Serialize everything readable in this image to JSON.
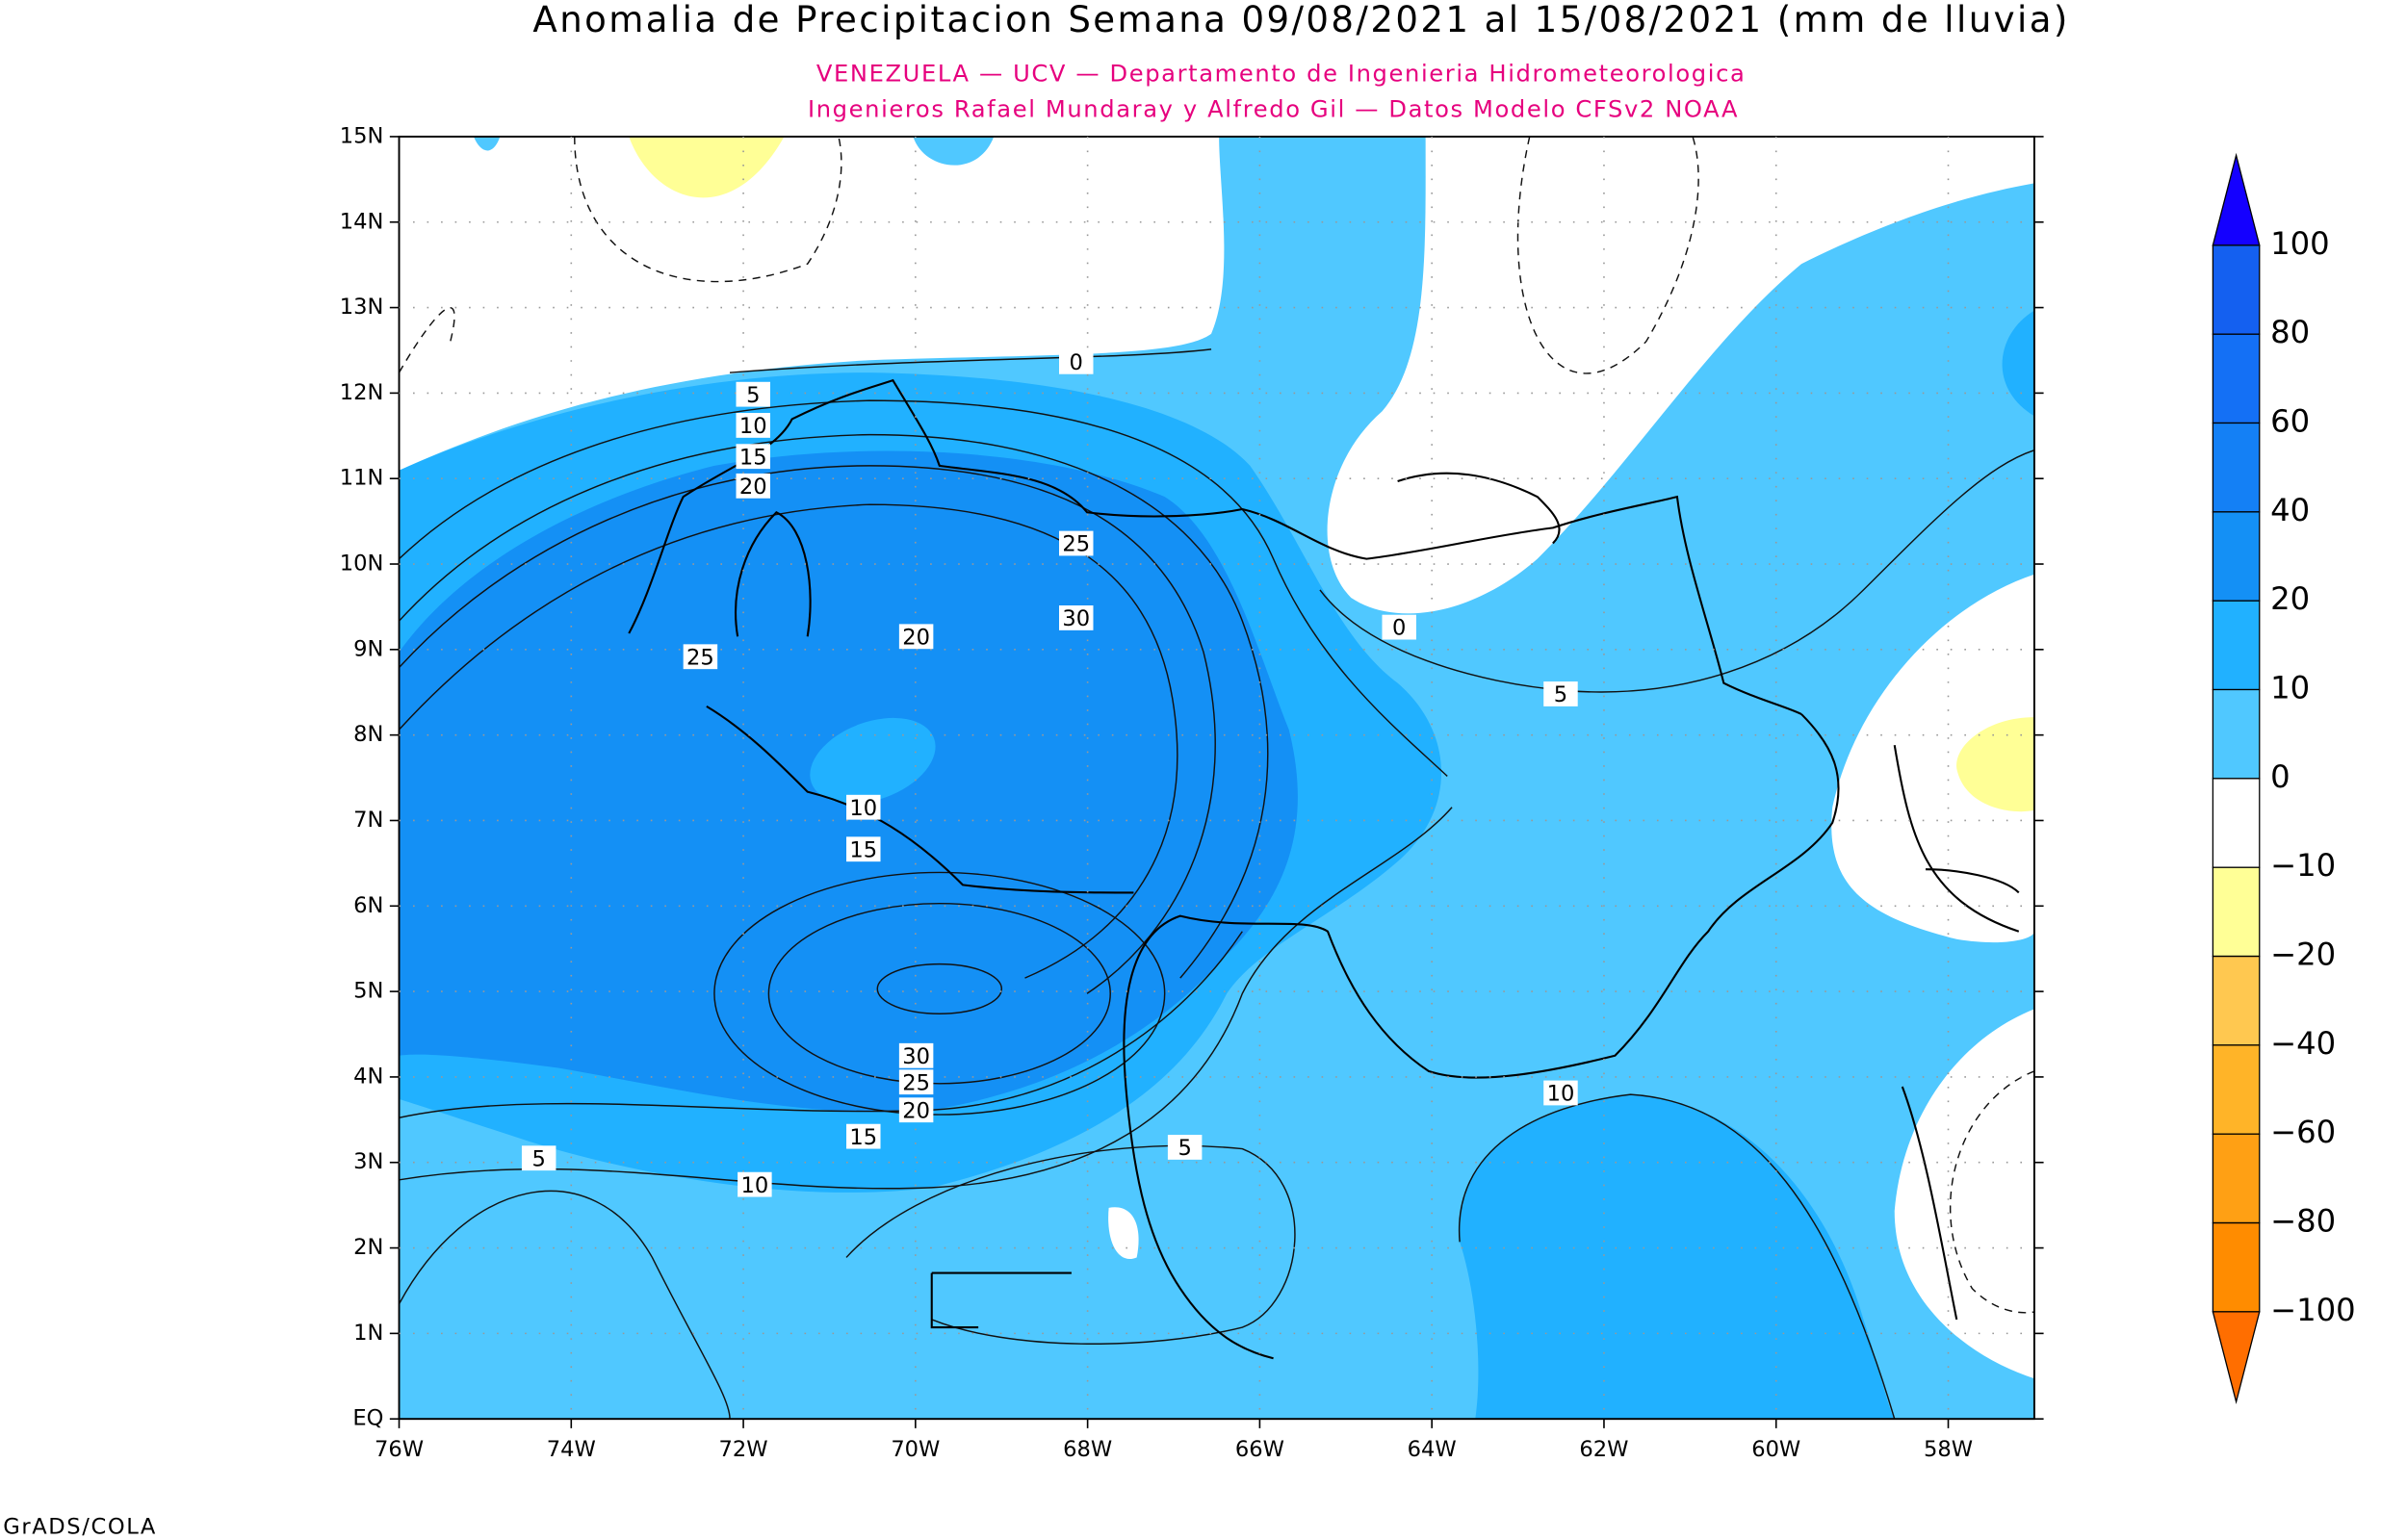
{
  "header": {
    "title": "Anomalia de Precipitacion Semana 09/08/2021 al 15/08/2021 (mm de lluvia)",
    "subtitle_1": "VENEZUELA — UCV — Departamento de Ingenieria Hidrometeorologica",
    "subtitle_2": "Ingenieros Rafael Mundaray y Alfredo Gil — Datos Modelo CFSv2 NOAA"
  },
  "map": {
    "lat_labels": [
      "EQ",
      "1N",
      "2N",
      "3N",
      "4N",
      "5N",
      "6N",
      "7N",
      "8N",
      "9N",
      "10N",
      "11N",
      "12N",
      "13N",
      "14N",
      "15N"
    ],
    "lon_labels": [
      "76W",
      "74W",
      "72W",
      "70W",
      "68W",
      "66W",
      "64W",
      "62W",
      "60W",
      "58W"
    ],
    "contour_labels": [
      0,
      5,
      10,
      15,
      20,
      25,
      30,
      20,
      25,
      0,
      5,
      10,
      15,
      30,
      25,
      20,
      15,
      10,
      5,
      5,
      10
    ]
  },
  "colorbar": {
    "labels": [
      "100",
      "80",
      "60",
      "40",
      "20",
      "10",
      "0",
      "−10",
      "−20",
      "−40",
      "−60",
      "−80",
      "−100"
    ],
    "colors": [
      "#1400ff",
      "#1460f0",
      "#1470f5",
      "#1480f5",
      "#1490f5",
      "#21b1ff",
      "#50c8ff",
      "#ffffff",
      "#ffff96",
      "#ffc850",
      "#ffb428",
      "#ffa014",
      "#ff8c00",
      "#ff6e00"
    ]
  },
  "footer": "GrADS/COLA"
}
